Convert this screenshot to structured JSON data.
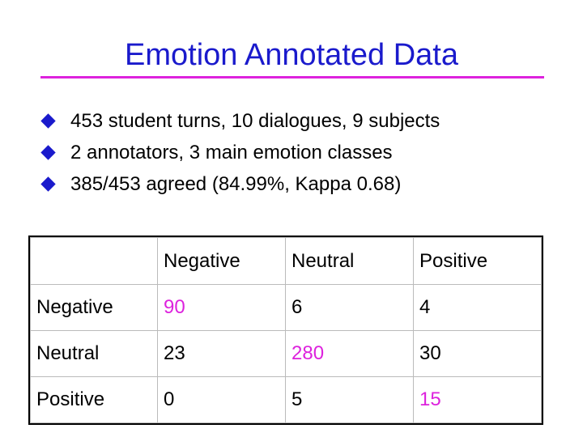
{
  "slide": {
    "title": "Emotion Annotated Data",
    "bullets": [
      "453 student turns, 10 dialogues, 9 subjects",
      "2 annotators, 3 main emotion classes",
      "385/453 agreed (84.99%, Kappa 0.68)"
    ]
  },
  "colors": {
    "title": "#1a1acc",
    "rule": "#dd22dd",
    "bullet": "#1a1acc",
    "diagonal_highlight": "#dd22dd"
  },
  "table": {
    "corner": "",
    "columns": [
      "Negative",
      "Neutral",
      "Positive"
    ],
    "rows": [
      {
        "label": "Negative",
        "values": [
          "90",
          "6",
          "4"
        ]
      },
      {
        "label": "Neutral",
        "values": [
          "23",
          "280",
          "30"
        ]
      },
      {
        "label": "Positive",
        "values": [
          "0",
          "5",
          "15"
        ]
      }
    ]
  }
}
